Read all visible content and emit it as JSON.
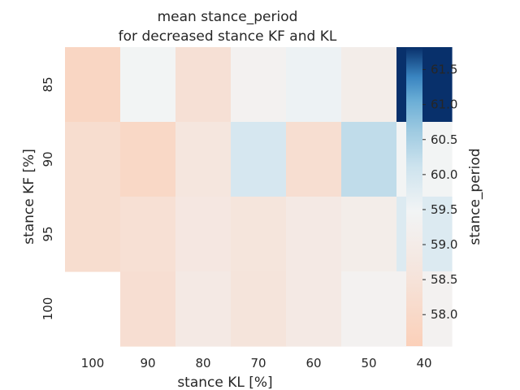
{
  "chart_data": {
    "type": "heatmap",
    "title_lines": [
      "mean stance_period",
      "for decreased stance KF and KL"
    ],
    "xlabel": "stance KL [%]",
    "ylabel": "stance KF [%]",
    "x_categories": [
      "100",
      "90",
      "80",
      "70",
      "60",
      "50",
      "40"
    ],
    "y_categories": [
      "85",
      "90",
      "95",
      "100"
    ],
    "values": [
      [
        57.85,
        59.45,
        58.38,
        59.3,
        59.55,
        59.05,
        61.82
      ],
      [
        58.2,
        57.95,
        58.65,
        59.95,
        58.25,
        60.25,
        59.45
      ],
      [
        58.2,
        58.35,
        58.75,
        58.6,
        58.85,
        59.05,
        59.85
      ],
      [
        null,
        58.28,
        58.85,
        58.55,
        58.85,
        59.3,
        59.3
      ]
    ],
    "colorbar": {
      "label": "stance_period",
      "vmin": 57.55,
      "vmax": 61.82,
      "ticks": [
        58.0,
        58.5,
        59.0,
        59.5,
        60.0,
        60.5,
        61.0,
        61.5
      ],
      "tick_labels": [
        "58.0",
        "58.5",
        "59.0",
        "59.5",
        "60.0",
        "60.5",
        "61.0",
        "61.5"
      ],
      "colormap_stops": [
        {
          "t": 0.0,
          "color": "#fbd0b9"
        },
        {
          "t": 0.25,
          "color": "#f5e5dd"
        },
        {
          "t": 0.45,
          "color": "#f2f4f5"
        },
        {
          "t": 0.6,
          "color": "#cde3ee"
        },
        {
          "t": 0.72,
          "color": "#9ecae1"
        },
        {
          "t": 0.82,
          "color": "#6baed6"
        },
        {
          "t": 0.9,
          "color": "#3a85c1"
        },
        {
          "t": 1.0,
          "color": "#08306b"
        }
      ]
    },
    "grid": false,
    "legend": "colorbar-right"
  }
}
